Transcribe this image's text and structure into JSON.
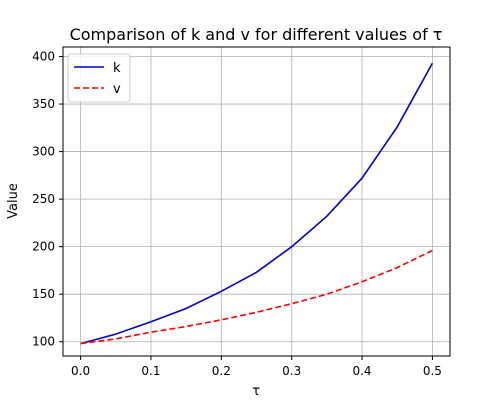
{
  "chart_data": {
    "type": "line",
    "title": "Comparison of k and v for different values of τ",
    "xlabel": "τ",
    "ylabel": "Value",
    "xlim": [
      -0.025,
      0.525
    ],
    "ylim": [
      85,
      410
    ],
    "xticks": [
      0.0,
      0.1,
      0.2,
      0.3,
      0.4,
      0.5
    ],
    "xtick_labels": [
      "0.0",
      "0.1",
      "0.2",
      "0.3",
      "0.4",
      "0.5"
    ],
    "yticks": [
      100,
      150,
      200,
      250,
      300,
      350,
      400
    ],
    "ytick_labels": [
      "100",
      "150",
      "200",
      "250",
      "300",
      "350",
      "400"
    ],
    "grid": true,
    "legend_position": "top-left",
    "x": [
      0.0,
      0.05,
      0.1,
      0.15,
      0.2,
      0.25,
      0.3,
      0.35,
      0.4,
      0.45,
      0.5
    ],
    "series": [
      {
        "name": "k",
        "color": "#0000cd",
        "style": "solid",
        "values": [
          98,
          108,
          121,
          135,
          153,
          173,
          200,
          232,
          272,
          326,
          393
        ]
      },
      {
        "name": "v",
        "color": "#ff0000",
        "style": "dashed",
        "values": [
          98,
          103,
          110,
          116,
          123,
          131,
          140,
          150,
          163,
          178,
          196
        ]
      }
    ]
  }
}
